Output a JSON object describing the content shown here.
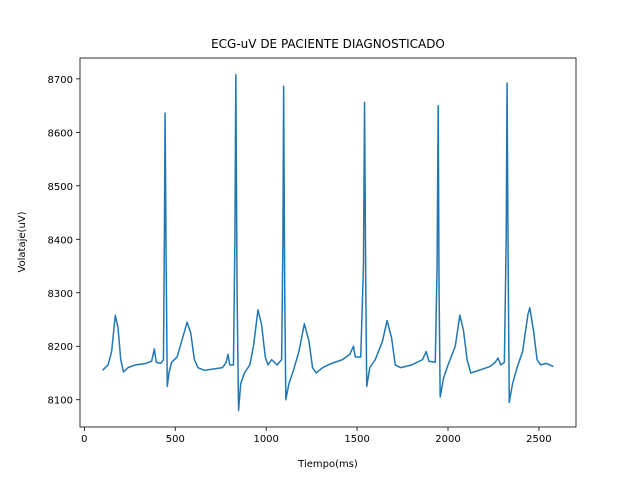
{
  "chart_data": {
    "type": "line",
    "title": "ECG-uV DE PACIENTE DIAGNOSTICADO",
    "xlabel": "Tiempo(ms)",
    "ylabel": "Volataje(uV)",
    "x": [
      100,
      130,
      150,
      170,
      185,
      200,
      215,
      240,
      280,
      340,
      370,
      385,
      395,
      420,
      435,
      440,
      444,
      450,
      456,
      465,
      480,
      510,
      540,
      565,
      585,
      605,
      625,
      660,
      720,
      760,
      780,
      790,
      800,
      820,
      828,
      833,
      840,
      848,
      860,
      880,
      910,
      930,
      955,
      975,
      995,
      1010,
      1030,
      1060,
      1085,
      1092,
      1096,
      1102,
      1108,
      1125,
      1150,
      1180,
      1210,
      1235,
      1255,
      1275,
      1310,
      1360,
      1420,
      1460,
      1480,
      1490,
      1520,
      1535,
      1541,
      1548,
      1553,
      1570,
      1600,
      1640,
      1665,
      1690,
      1710,
      1740,
      1800,
      1860,
      1880,
      1895,
      1930,
      1940,
      1946,
      1951,
      1957,
      1975,
      2000,
      2040,
      2065,
      2085,
      2105,
      2125,
      2170,
      2230,
      2260,
      2275,
      2290,
      2310,
      2320,
      2325,
      2331,
      2337,
      2355,
      2380,
      2410,
      2440,
      2450,
      2470,
      2490,
      2510,
      2540,
      2580
    ],
    "series": [
      {
        "color": "#1f77b4",
        "values": [
          8155,
          8165,
          8190,
          8258,
          8235,
          8175,
          8152,
          8160,
          8165,
          8168,
          8172,
          8195,
          8170,
          8168,
          8175,
          8400,
          8636,
          8350,
          8125,
          8150,
          8170,
          8180,
          8215,
          8245,
          8225,
          8175,
          8160,
          8155,
          8158,
          8160,
          8170,
          8185,
          8165,
          8165,
          8400,
          8708,
          8300,
          8080,
          8130,
          8150,
          8165,
          8200,
          8268,
          8240,
          8180,
          8165,
          8175,
          8165,
          8175,
          8400,
          8686,
          8300,
          8100,
          8130,
          8155,
          8190,
          8242,
          8210,
          8160,
          8150,
          8160,
          8168,
          8175,
          8185,
          8200,
          8180,
          8180,
          8350,
          8656,
          8300,
          8125,
          8160,
          8175,
          8210,
          8248,
          8215,
          8165,
          8160,
          8165,
          8175,
          8190,
          8172,
          8170,
          8350,
          8650,
          8300,
          8105,
          8140,
          8165,
          8200,
          8258,
          8230,
          8175,
          8150,
          8155,
          8162,
          8170,
          8178,
          8165,
          8170,
          8400,
          8692,
          8350,
          8095,
          8130,
          8160,
          8190,
          8260,
          8272,
          8230,
          8175,
          8165,
          8168,
          8162
        ]
      }
    ],
    "xlim": [
      -24,
      2704
    ],
    "ylim": [
      8049,
      8739
    ],
    "xticks": [
      0,
      500,
      1000,
      1500,
      2000,
      2500
    ],
    "yticks": [
      8100,
      8200,
      8300,
      8400,
      8500,
      8600,
      8700
    ]
  }
}
